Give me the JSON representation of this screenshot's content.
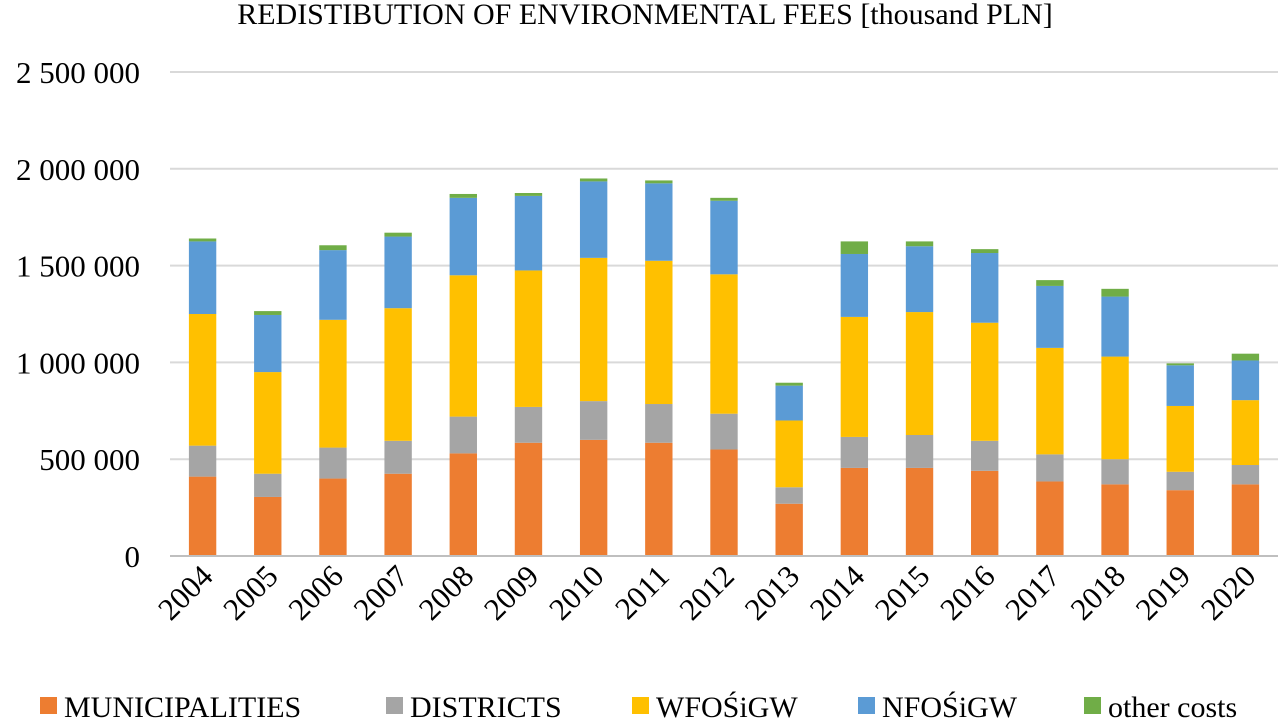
{
  "chart_data": {
    "type": "bar",
    "stacked": true,
    "title": "REDISTIBUTION  OF ENVIRONMENTAL FEES [thousand PLN]",
    "xlabel": "",
    "ylabel": "",
    "ylim": [
      0,
      2500000
    ],
    "yticks": [
      0,
      500000,
      1000000,
      1500000,
      2000000,
      2500000
    ],
    "ytick_labels": [
      "0",
      "500 000",
      "1 000 000",
      "1 500 000",
      "2 000 000",
      "2 500 000"
    ],
    "grid": true,
    "legend_position": "bottom",
    "categories": [
      "2004",
      "2005",
      "2006",
      "2007",
      "2008",
      "2009",
      "2010",
      "2011",
      "2012",
      "2013",
      "2014",
      "2015",
      "2016",
      "2017",
      "2018",
      "2019",
      "2020"
    ],
    "series": [
      {
        "name": "MUNICIPALITIES",
        "color": "#ed7d31",
        "values": [
          410000,
          305000,
          400000,
          425000,
          530000,
          585000,
          600000,
          585000,
          550000,
          270000,
          455000,
          455000,
          440000,
          385000,
          370000,
          340000,
          370000
        ]
      },
      {
        "name": "DISTRICTS",
        "color": "#a5a5a5",
        "values": [
          160000,
          120000,
          160000,
          170000,
          190000,
          185000,
          200000,
          200000,
          185000,
          85000,
          160000,
          170000,
          155000,
          140000,
          130000,
          95000,
          100000
        ]
      },
      {
        "name": "WFOŚiGW",
        "color": "#ffc000",
        "values": [
          680000,
          525000,
          660000,
          685000,
          730000,
          705000,
          740000,
          740000,
          720000,
          345000,
          620000,
          635000,
          610000,
          550000,
          530000,
          340000,
          335000
        ]
      },
      {
        "name": "NFOŚiGW",
        "color": "#5b9bd5",
        "values": [
          375000,
          295000,
          360000,
          370000,
          400000,
          385000,
          395000,
          400000,
          380000,
          180000,
          325000,
          340000,
          360000,
          320000,
          310000,
          210000,
          205000
        ]
      },
      {
        "name": "other costs",
        "color": "#70ad47",
        "values": [
          15000,
          20000,
          25000,
          20000,
          20000,
          15000,
          15000,
          15000,
          15000,
          15000,
          65000,
          25000,
          20000,
          30000,
          40000,
          10000,
          35000
        ]
      }
    ]
  }
}
